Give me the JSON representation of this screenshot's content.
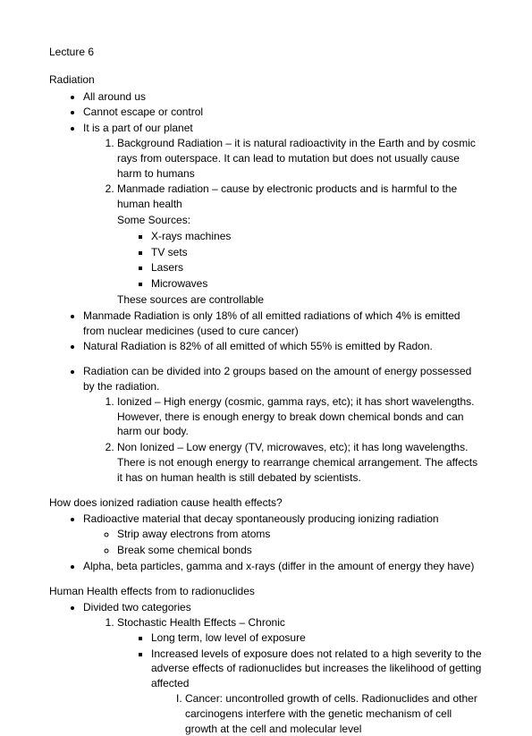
{
  "title": "Lecture 6",
  "radiation": {
    "heading": "Radiation",
    "b1": "All around us",
    "b2": "Cannot escape or control",
    "b3": "It is a part of our planet",
    "sub1": "Background Radiation – it is natural radioactivity in the Earth and by cosmic rays from outerspace. It can lead to mutation but does not usually cause harm to humans",
    "sub2": "Manmade radiation – cause by electronic products and is harmful to the human health",
    "some_sources": "Some Sources:",
    "src1": "X-rays machines",
    "src2": "TV sets",
    "src3": "Lasers",
    "src4": "Microwaves",
    "controllable": "These sources are controllable",
    "b4": "Manmade Radiation is only 18% of all emitted radiations of which 4% is emitted from nuclear medicines (used to cure cancer)",
    "b5": "Natural Radiation is 82% of all emitted of which 55% is emitted by Radon.",
    "b6": "Radiation can be divided into 2 groups based on the amount of energy possessed by the radiation.",
    "grp1": "Ionized – High energy (cosmic, gamma rays, etc); it has short wavelengths. However, there is enough energy to break down chemical bonds and can harm our body.",
    "grp2": "Non Ionized – Low energy (TV, microwaves, etc); it has long wavelengths. There is not enough energy to rearrange chemical arrangement. The affects it has on human health is still debated by scientists."
  },
  "health_effects": {
    "heading": "How does ionized radiation cause health effects?",
    "b1": "Radioactive material that decay spontaneously producing ionizing radiation",
    "sub1": "Strip away electrons from atoms",
    "sub2": "Break some chemical bonds",
    "b2": "Alpha, beta particles, gamma and x-rays (differ in the amount of energy they have)"
  },
  "human_health": {
    "heading": "Human Health effects from to radionuclides",
    "b1": "Divided two categories",
    "cat1": "Stochastic Health Effects – Chronic",
    "c1a": "Long term, low level of exposure",
    "c1b": "Increased levels of exposure does not related to a high severity to the adverse effects of radionuclides but increases the likelihood of getting affected",
    "c1b_i": "Cancer: uncontrolled growth of cells. Radionuclides and other carcinogens interfere with the genetic mechanism of cell growth at the cell and molecular level"
  }
}
